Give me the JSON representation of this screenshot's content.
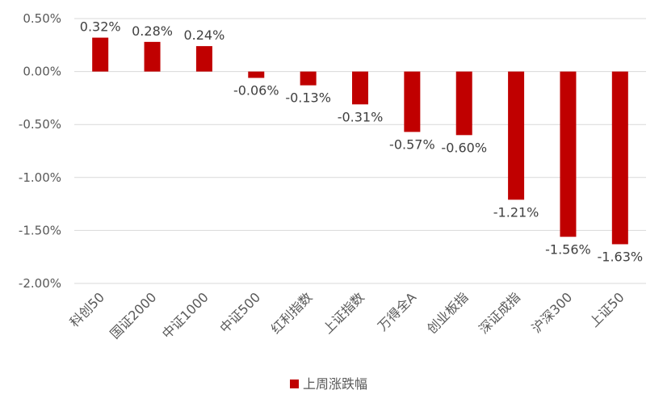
{
  "chart_data": {
    "type": "bar",
    "title": "",
    "xlabel": "",
    "ylabel": "",
    "ylim": [
      -2.0,
      0.5
    ],
    "yticks": [
      "0.50%",
      "0.00%",
      "-0.50%",
      "-1.00%",
      "-1.50%",
      "-2.00%"
    ],
    "ytick_values": [
      0.5,
      0.0,
      -0.5,
      -1.0,
      -1.5,
      -2.0
    ],
    "grid": true,
    "legend_position": "bottom",
    "categories": [
      "科创50",
      "国证2000",
      "中证1000",
      "中证500",
      "红利指数",
      "上证指数",
      "万得全A",
      "创业板指",
      "深证成指",
      "沪深300",
      "上证50"
    ],
    "series": [
      {
        "name": "上周涨跌幅",
        "color": "#c00000",
        "values": [
          0.32,
          0.28,
          0.24,
          -0.06,
          -0.13,
          -0.31,
          -0.57,
          -0.6,
          -1.21,
          -1.56,
          -1.63
        ],
        "labels": [
          "0.32%",
          "0.28%",
          "0.24%",
          "-0.06%",
          "-0.13%",
          "-0.31%",
          "-0.57%",
          "-0.60%",
          "-1.21%",
          "-1.56%",
          "-1.63%"
        ]
      }
    ]
  }
}
